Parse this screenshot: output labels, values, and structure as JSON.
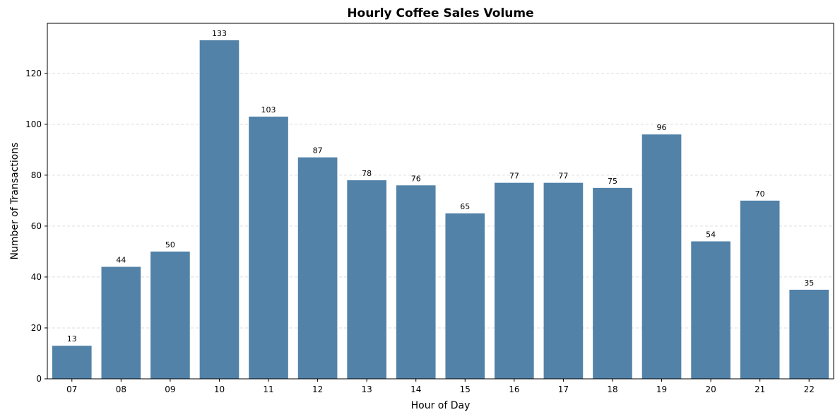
{
  "chart_data": {
    "type": "bar",
    "title": "Hourly Coffee Sales Volume",
    "xlabel": "Hour of Day",
    "ylabel": "Number of Transactions",
    "categories": [
      "07",
      "08",
      "09",
      "10",
      "11",
      "12",
      "13",
      "14",
      "15",
      "16",
      "17",
      "18",
      "19",
      "20",
      "21",
      "22"
    ],
    "values": [
      13,
      44,
      50,
      133,
      103,
      87,
      78,
      76,
      65,
      77,
      77,
      75,
      96,
      54,
      70,
      35
    ],
    "ylim": [
      0,
      139.65
    ],
    "yticks": [
      0,
      20,
      40,
      60,
      80,
      100,
      120
    ],
    "bar_color": "#5282a8",
    "grid": "y-dashed",
    "legend": "none"
  }
}
